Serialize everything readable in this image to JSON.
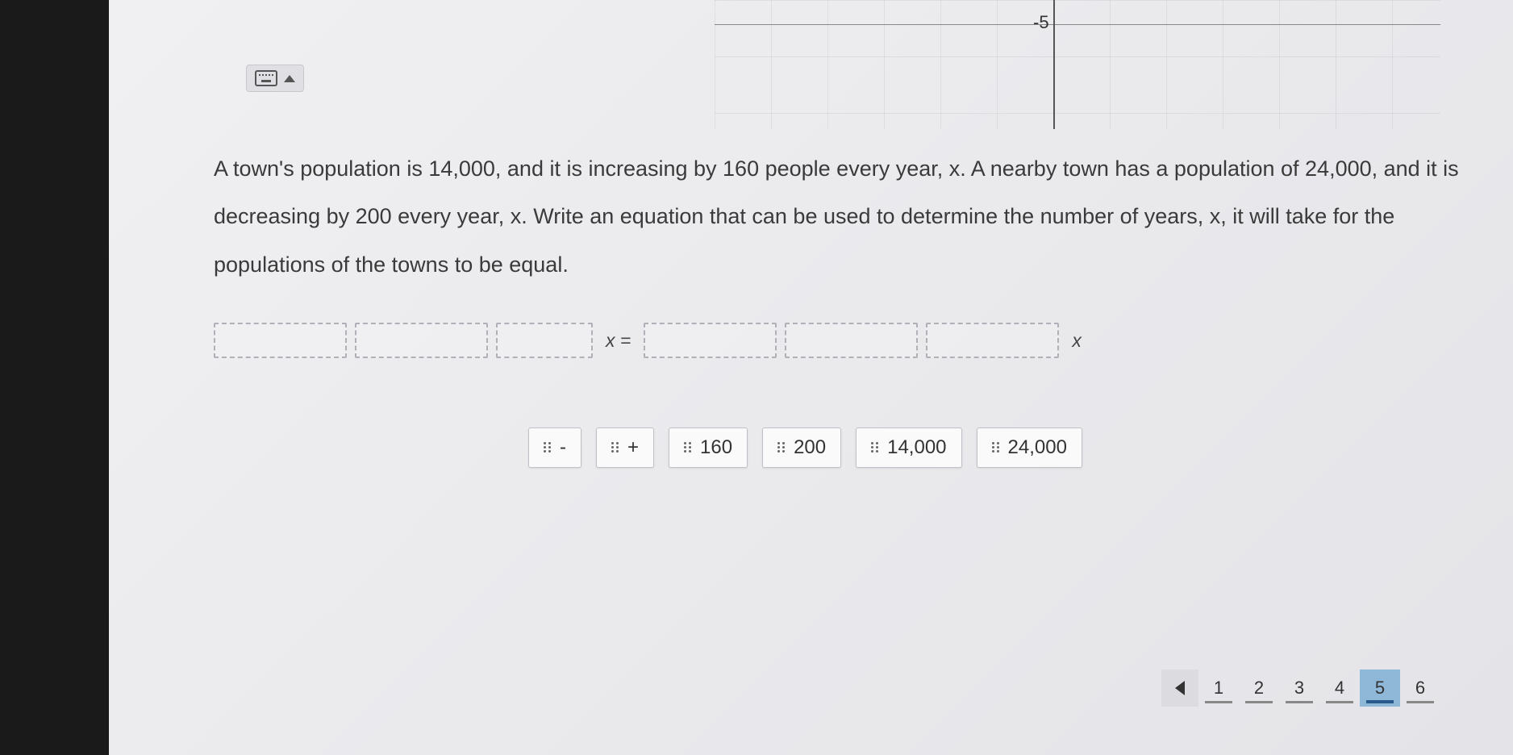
{
  "graph": {
    "tick_label": "-5",
    "grid_color": "#d8d8de",
    "axis_color": "#555555"
  },
  "question": {
    "text": "A town's population is 14,000, and it is increasing by 160 people every year, x. A nearby town has a population of 24,000, and it is decreasing by 200 every year, x.  Write an equation that can be used to determine the number of years, x,  it will take for the populations of the towns to be equal."
  },
  "equation": {
    "mid_label": "x =",
    "end_label": "x"
  },
  "tiles": {
    "items": [
      "-",
      "+",
      "160",
      "200",
      "14,000",
      "24,000"
    ]
  },
  "pager": {
    "pages": [
      "1",
      "2",
      "3",
      "4",
      "5",
      "6"
    ],
    "active_index": 4
  },
  "colors": {
    "page_bg": "#e8e8ea",
    "text": "#3a3a3a",
    "slot_border": "#b0b0b8",
    "tile_bg": "#fafafa",
    "tile_border": "#c0c0c8",
    "pager_active_bg": "#8fb8d8"
  }
}
